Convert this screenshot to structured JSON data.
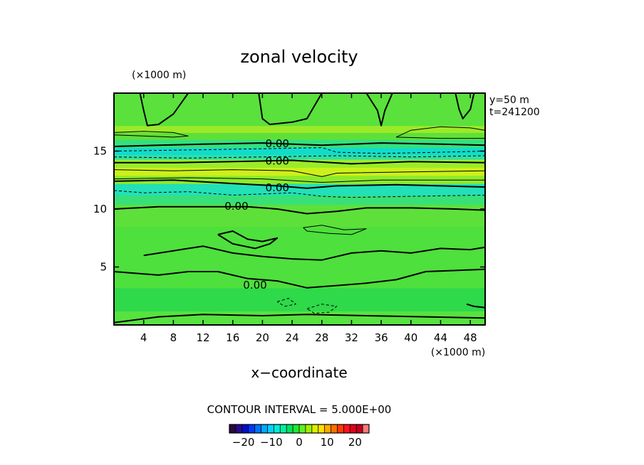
{
  "chart_data": {
    "type": "heatmap",
    "title": "zonal velocity",
    "xlabel": "x−coordinate",
    "ylabel": "",
    "x_unit": "(×1000 m)",
    "y_unit": "(×1000 m)",
    "xlim": [
      0,
      50
    ],
    "ylim": [
      0,
      20
    ],
    "x_ticks": [
      4,
      8,
      12,
      16,
      20,
      24,
      28,
      32,
      36,
      40,
      44,
      48
    ],
    "y_ticks": [
      5,
      10,
      15
    ],
    "info_lines": [
      "y=50  m",
      "t=241200"
    ],
    "contour_interval_text": "CONTOUR INTERVAL = 5.000E+00",
    "contour_labels": [
      {
        "text": "0.00",
        "x": 22,
        "y": 15.7
      },
      {
        "text": "0.00",
        "x": 22,
        "y": 14.2
      },
      {
        "text": "0.00",
        "x": 22,
        "y": 11.9
      },
      {
        "text": "0.00",
        "x": 16.5,
        "y": 10.3
      },
      {
        "text": "0.00",
        "x": 19,
        "y": 3.5
      }
    ],
    "colorbar": {
      "range": [
        -25,
        25
      ],
      "ticks": [
        -20,
        -10,
        0,
        10,
        20
      ],
      "tick_labels": [
        "−20",
        "−10",
        "0",
        "10",
        "20"
      ],
      "colors": [
        "#2a0a3a",
        "#2b0a8a",
        "#0010c8",
        "#0038ff",
        "#0070ff",
        "#00a8ff",
        "#00d2ff",
        "#00ecd8",
        "#00f0a0",
        "#00e060",
        "#20e830",
        "#60f020",
        "#a0f000",
        "#d8f000",
        "#ffe000",
        "#ffa800",
        "#ff7000",
        "#ff3c00",
        "#ff1020",
        "#e00020",
        "#c0001a",
        "#ff7a7a"
      ]
    },
    "bands": [
      {
        "y_range": [
          0,
          1.2
        ],
        "color": "#57e23f"
      },
      {
        "y_range": [
          1.2,
          3.2
        ],
        "color": "#2ed94a"
      },
      {
        "y_range": [
          3.2,
          8.5
        ],
        "color": "#4ee03c"
      },
      {
        "y_range": [
          8.5,
          10.4
        ],
        "color": "#5ee03a"
      },
      {
        "y_range": [
          10.4,
          11.2
        ],
        "color": "#38e07a"
      },
      {
        "y_range": [
          11.2,
          12.2
        ],
        "color": "#22e0b8"
      },
      {
        "y_range": [
          12.2,
          12.9
        ],
        "color": "#8eea2a"
      },
      {
        "y_range": [
          12.9,
          13.6
        ],
        "color": "#cdf01a"
      },
      {
        "y_range": [
          13.6,
          14.3
        ],
        "color": "#9aec28"
      },
      {
        "y_range": [
          14.3,
          14.7
        ],
        "color": "#2ee0a8"
      },
      {
        "y_range": [
          14.7,
          15.3
        ],
        "color": "#10dccc"
      },
      {
        "y_range": [
          15.3,
          16.0
        ],
        "color": "#34e07e"
      },
      {
        "y_range": [
          16.0,
          16.6
        ],
        "color": "#5ee03a"
      },
      {
        "y_range": [
          16.6,
          17.2
        ],
        "color": "#9bea28"
      },
      {
        "y_range": [
          17.2,
          20
        ],
        "color": "#5ae13c"
      }
    ],
    "contours": [
      {
        "style": "solid-thick",
        "points": [
          [
            0,
            15.4
          ],
          [
            6,
            15.5
          ],
          [
            12,
            15.6
          ],
          [
            20,
            15.7
          ],
          [
            28,
            15.5
          ],
          [
            36,
            15.7
          ],
          [
            44,
            15.6
          ],
          [
            50,
            15.5
          ]
        ]
      },
      {
        "style": "solid-thick",
        "points": [
          [
            0,
            14.0
          ],
          [
            8,
            14.0
          ],
          [
            16,
            14.1
          ],
          [
            24,
            14.2
          ],
          [
            32,
            13.9
          ],
          [
            40,
            14.1
          ],
          [
            50,
            14.0
          ]
        ]
      },
      {
        "style": "solid-thick",
        "points": [
          [
            0,
            12.4
          ],
          [
            8,
            12.5
          ],
          [
            16,
            12.2
          ],
          [
            22,
            12.0
          ],
          [
            26,
            11.8
          ],
          [
            30,
            12.0
          ],
          [
            38,
            12.1
          ],
          [
            44,
            12.0
          ],
          [
            50,
            11.9
          ]
        ]
      },
      {
        "style": "solid-thick",
        "points": [
          [
            0,
            10.0
          ],
          [
            6,
            10.2
          ],
          [
            12,
            10.2
          ],
          [
            18,
            10.2
          ],
          [
            22,
            10.0
          ],
          [
            26,
            9.6
          ],
          [
            30,
            9.8
          ],
          [
            34,
            10.1
          ],
          [
            40,
            10.1
          ],
          [
            46,
            10.0
          ],
          [
            50,
            9.9
          ]
        ]
      },
      {
        "style": "solid-thick",
        "points": [
          [
            0,
            4.6
          ],
          [
            6,
            4.3
          ],
          [
            10,
            4.6
          ],
          [
            14,
            4.6
          ],
          [
            18,
            4.0
          ],
          [
            22,
            3.8
          ],
          [
            26,
            3.2
          ],
          [
            30,
            3.4
          ],
          [
            34,
            3.6
          ],
          [
            38,
            3.9
          ],
          [
            42,
            4.6
          ],
          [
            46,
            4.7
          ],
          [
            50,
            4.8
          ]
        ]
      },
      {
        "style": "solid-thick",
        "points": [
          [
            0,
            0.2
          ],
          [
            6,
            0.7
          ],
          [
            12,
            0.9
          ],
          [
            20,
            0.8
          ],
          [
            26,
            0.9
          ],
          [
            34,
            0.8
          ],
          [
            42,
            0.7
          ],
          [
            50,
            0.6
          ]
        ]
      },
      {
        "style": "solid-thick",
        "points": [
          [
            4,
            6.0
          ],
          [
            8,
            6.4
          ],
          [
            12,
            6.8
          ],
          [
            16,
            6.2
          ],
          [
            20,
            5.9
          ],
          [
            24,
            5.7
          ],
          [
            28,
            5.6
          ],
          [
            32,
            6.2
          ],
          [
            36,
            6.4
          ],
          [
            40,
            6.2
          ],
          [
            44,
            6.6
          ],
          [
            48,
            6.5
          ],
          [
            50,
            6.7
          ]
        ]
      },
      {
        "style": "solid-thick",
        "points": [
          [
            14,
            7.8
          ],
          [
            16,
            8.1
          ],
          [
            18,
            7.4
          ],
          [
            20,
            7.2
          ],
          [
            22,
            7.5
          ],
          [
            21,
            7.0
          ],
          [
            19,
            6.6
          ],
          [
            16,
            7.0
          ],
          [
            14,
            7.8
          ]
        ]
      },
      {
        "style": "solid-thick",
        "points": [
          [
            3.5,
            20
          ],
          [
            4,
            18.5
          ],
          [
            4.5,
            17.2
          ],
          [
            6,
            17.3
          ],
          [
            8,
            18.2
          ],
          [
            10,
            20
          ]
        ]
      },
      {
        "style": "solid-thick",
        "points": [
          [
            19.5,
            20
          ],
          [
            20,
            17.8
          ],
          [
            21,
            17.3
          ],
          [
            24,
            17.5
          ],
          [
            26,
            17.8
          ],
          [
            28,
            20
          ]
        ]
      },
      {
        "style": "solid-thick",
        "points": [
          [
            34,
            20
          ],
          [
            35.5,
            18.5
          ],
          [
            36,
            17.2
          ],
          [
            36.5,
            18.5
          ],
          [
            37.5,
            20
          ]
        ]
      },
      {
        "style": "solid-thick",
        "points": [
          [
            46,
            20
          ],
          [
            46.5,
            18.6
          ],
          [
            47,
            17.8
          ],
          [
            48,
            18.6
          ],
          [
            48.5,
            20
          ]
        ]
      },
      {
        "style": "solid-thick",
        "points": [
          [
            47.5,
            1.8
          ],
          [
            48.5,
            1.6
          ],
          [
            50,
            1.5
          ]
        ]
      },
      {
        "style": "solid-thin",
        "points": [
          [
            0,
            16.4
          ],
          [
            4,
            16.3
          ],
          [
            8,
            16.2
          ],
          [
            10,
            16.3
          ],
          [
            8,
            16.6
          ],
          [
            4,
            16.7
          ],
          [
            0,
            16.6
          ]
        ]
      },
      {
        "style": "solid-thin",
        "points": [
          [
            38,
            16.2
          ],
          [
            40,
            16.8
          ],
          [
            44,
            17.1
          ],
          [
            48,
            17.0
          ],
          [
            50,
            16.8
          ],
          [
            50,
            16.1
          ],
          [
            44,
            16.1
          ],
          [
            38,
            16.2
          ]
        ]
      },
      {
        "style": "solid-thin",
        "points": [
          [
            0,
            13.4
          ],
          [
            8,
            13.3
          ],
          [
            16,
            13.4
          ],
          [
            24,
            13.3
          ],
          [
            28,
            12.8
          ],
          [
            30,
            13.1
          ],
          [
            40,
            13.2
          ],
          [
            50,
            13.3
          ]
        ]
      },
      {
        "style": "solid-thin",
        "points": [
          [
            0,
            12.6
          ],
          [
            10,
            12.7
          ],
          [
            20,
            12.6
          ],
          [
            28,
            12.3
          ],
          [
            36,
            12.5
          ],
          [
            50,
            12.5
          ]
        ]
      },
      {
        "style": "solid-thin",
        "points": [
          [
            25.5,
            8.4
          ],
          [
            28,
            8.6
          ],
          [
            31,
            8.2
          ],
          [
            34,
            8.3
          ],
          [
            32,
            7.8
          ],
          [
            29,
            7.9
          ],
          [
            26,
            8.1
          ],
          [
            25.5,
            8.4
          ]
        ]
      },
      {
        "style": "dashed",
        "points": [
          [
            0,
            15.0
          ],
          [
            10,
            15.1
          ],
          [
            20,
            15.2
          ],
          [
            28,
            15.3
          ],
          [
            30,
            14.9
          ],
          [
            36,
            14.8
          ],
          [
            44,
            14.9
          ],
          [
            50,
            15.0
          ]
        ]
      },
      {
        "style": "dashed",
        "points": [
          [
            0,
            14.5
          ],
          [
            10,
            14.4
          ],
          [
            20,
            14.5
          ],
          [
            30,
            14.6
          ],
          [
            40,
            14.5
          ],
          [
            50,
            14.6
          ]
        ]
      },
      {
        "style": "dashed",
        "points": [
          [
            0,
            11.6
          ],
          [
            4,
            11.4
          ],
          [
            10,
            11.5
          ],
          [
            16,
            11.2
          ],
          [
            24,
            11.4
          ],
          [
            28,
            11.1
          ],
          [
            32,
            11.0
          ],
          [
            40,
            11.1
          ],
          [
            50,
            11.2
          ]
        ]
      },
      {
        "style": "dashed",
        "points": [
          [
            26,
            1.4
          ],
          [
            28,
            1.8
          ],
          [
            30,
            1.6
          ],
          [
            29,
            1.1
          ],
          [
            27,
            1.0
          ],
          [
            26,
            1.4
          ]
        ]
      },
      {
        "style": "dashed",
        "points": [
          [
            22,
            2.0
          ],
          [
            23.5,
            2.3
          ],
          [
            24.5,
            1.8
          ],
          [
            23,
            1.6
          ],
          [
            22,
            2.0
          ]
        ]
      }
    ]
  }
}
